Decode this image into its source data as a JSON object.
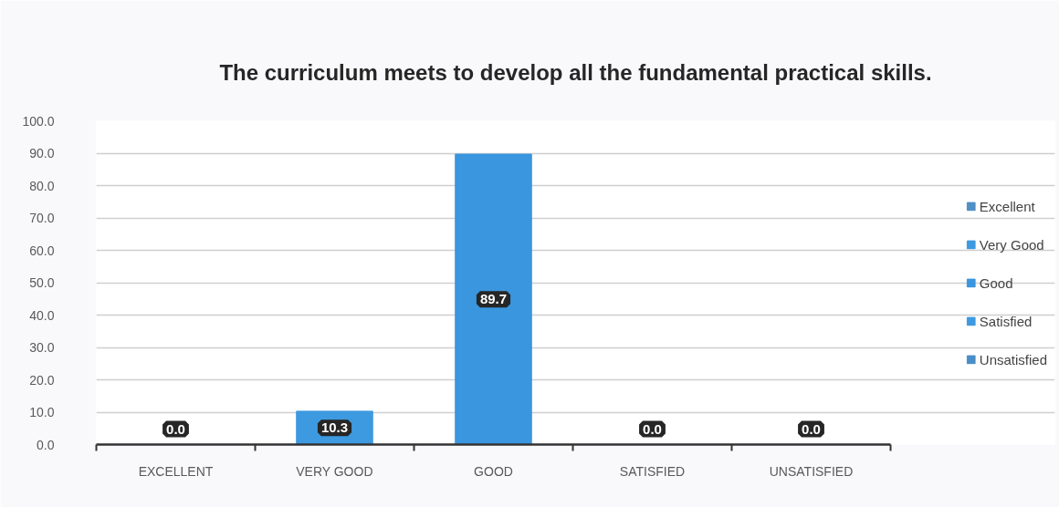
{
  "chart_data": {
    "type": "bar",
    "title": "The curriculum meets to develop all the fundamental practical skills.",
    "categories": [
      "EXCELLENT",
      "VERY GOOD",
      "GOOD",
      "SATISFIED",
      "UNSATISFIED"
    ],
    "series": [
      {
        "name": "Excellent",
        "color": "#4f8fc4",
        "values": [
          0.0,
          null,
          null,
          null,
          null
        ],
        "value_labels": [
          "0.0",
          null,
          null,
          null,
          null
        ]
      },
      {
        "name": "Very Good",
        "color": "#3d9ae0",
        "values": [
          null,
          10.3,
          null,
          null,
          null
        ],
        "value_labels": [
          null,
          "10.3",
          null,
          null,
          null
        ]
      },
      {
        "name": "Good",
        "color": "#3a96de",
        "values": [
          null,
          null,
          89.7,
          null,
          null
        ],
        "value_labels": [
          null,
          null,
          "89.7",
          null,
          null
        ]
      },
      {
        "name": "Satisfied",
        "color": "#3d9ae0",
        "values": [
          null,
          null,
          null,
          0.0,
          null
        ],
        "value_labels": [
          null,
          null,
          null,
          "0.0",
          null
        ]
      },
      {
        "name": "Unsatisfied",
        "color": "#4a8ec8",
        "values": [
          null,
          null,
          null,
          null,
          0.0
        ],
        "value_labels": [
          null,
          null,
          null,
          null,
          "0.0"
        ]
      }
    ],
    "stacked": true,
    "ylim": [
      0,
      100
    ],
    "yticks": [
      {
        "value": 0,
        "label": "0.0"
      },
      {
        "value": 10,
        "label": "10.0"
      },
      {
        "value": 20,
        "label": "20.0"
      },
      {
        "value": 30,
        "label": "30.0"
      },
      {
        "value": 40,
        "label": "40.0"
      },
      {
        "value": 50,
        "label": "50.0"
      },
      {
        "value": 60,
        "label": "60.0"
      },
      {
        "value": 70,
        "label": "70.0"
      },
      {
        "value": 80,
        "label": "80.0"
      },
      {
        "value": 90,
        "label": "90.0"
      },
      {
        "value": 100,
        "label": "100.0"
      }
    ],
    "grid": "y",
    "legend": "right"
  }
}
